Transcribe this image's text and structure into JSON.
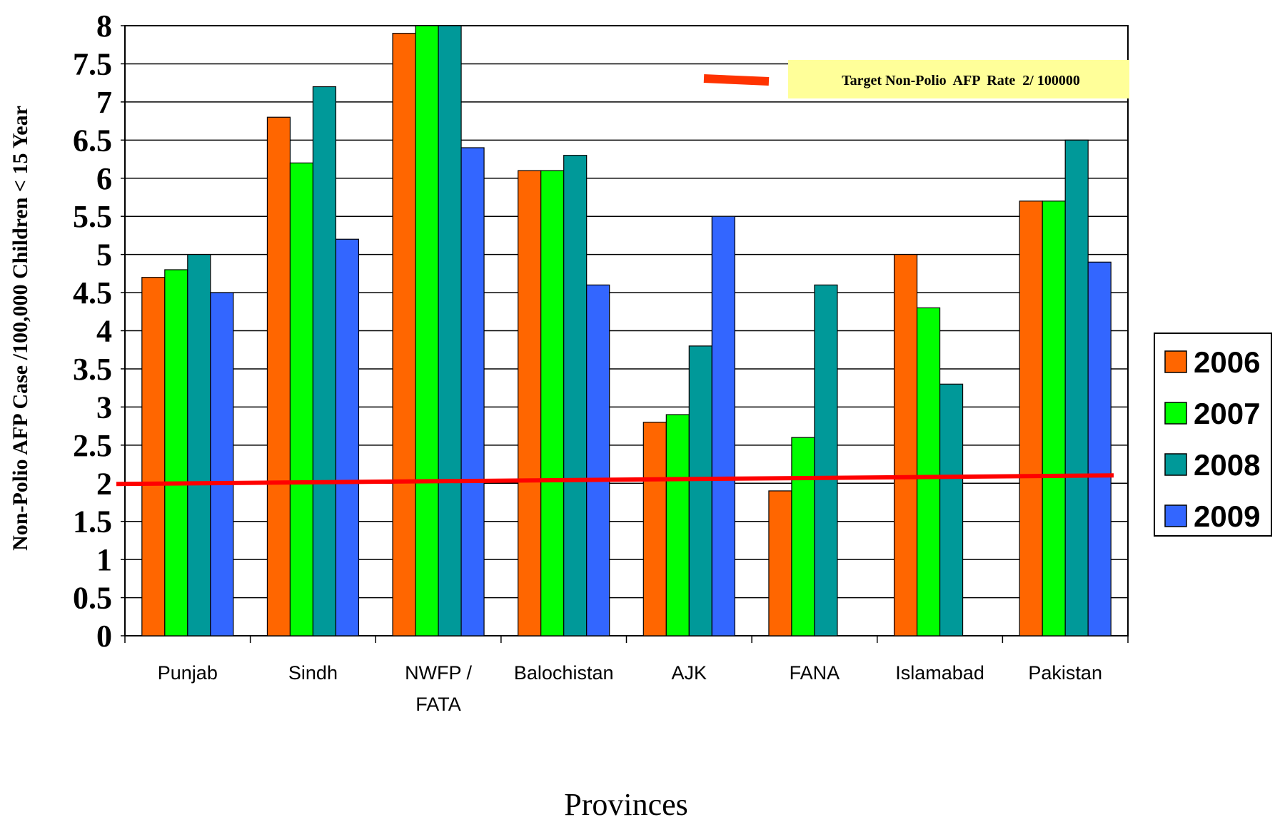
{
  "chart_data": {
    "type": "bar",
    "ylabel": "Non-Polio AFP Case /100,000 Children < 15 Year",
    "xlabel": "Provinces",
    "ylim": [
      0,
      8
    ],
    "yticks": [
      "0",
      "0.5",
      "1",
      "1.5",
      "2",
      "2.5",
      "3",
      "3.5",
      "4",
      "4.5",
      "5",
      "5.5",
      "6",
      "6.5",
      "7",
      "7.5",
      "8"
    ],
    "categories": [
      [
        "Punjab"
      ],
      [
        "Sindh"
      ],
      [
        "NWFP /",
        "FATA"
      ],
      [
        "Balochistan"
      ],
      [
        "AJK"
      ],
      [
        "FANA"
      ],
      [
        "Islamabad"
      ],
      [
        "Pakistan"
      ]
    ],
    "series": [
      {
        "name": "2006",
        "color": "#FF6600",
        "values": [
          4.7,
          6.8,
          7.9,
          6.1,
          2.8,
          1.9,
          5.0,
          5.7
        ]
      },
      {
        "name": "2007",
        "color": "#00FF00",
        "values": [
          4.8,
          6.2,
          8.1,
          6.1,
          2.9,
          2.6,
          4.3,
          5.7
        ]
      },
      {
        "name": "2008",
        "color": "#009999",
        "values": [
          5.0,
          7.2,
          8.1,
          6.3,
          3.8,
          4.6,
          3.3,
          6.5
        ]
      },
      {
        "name": "2009",
        "color": "#3366FF",
        "values": [
          4.5,
          5.2,
          6.4,
          4.6,
          5.5,
          null,
          null,
          4.9
        ]
      }
    ],
    "target_line": {
      "value": 2,
      "color": "#FF0000"
    },
    "annotation": "Target Non-Polio  AFP  Rate  2/ 100000",
    "grid": true,
    "legend_position": "right"
  }
}
